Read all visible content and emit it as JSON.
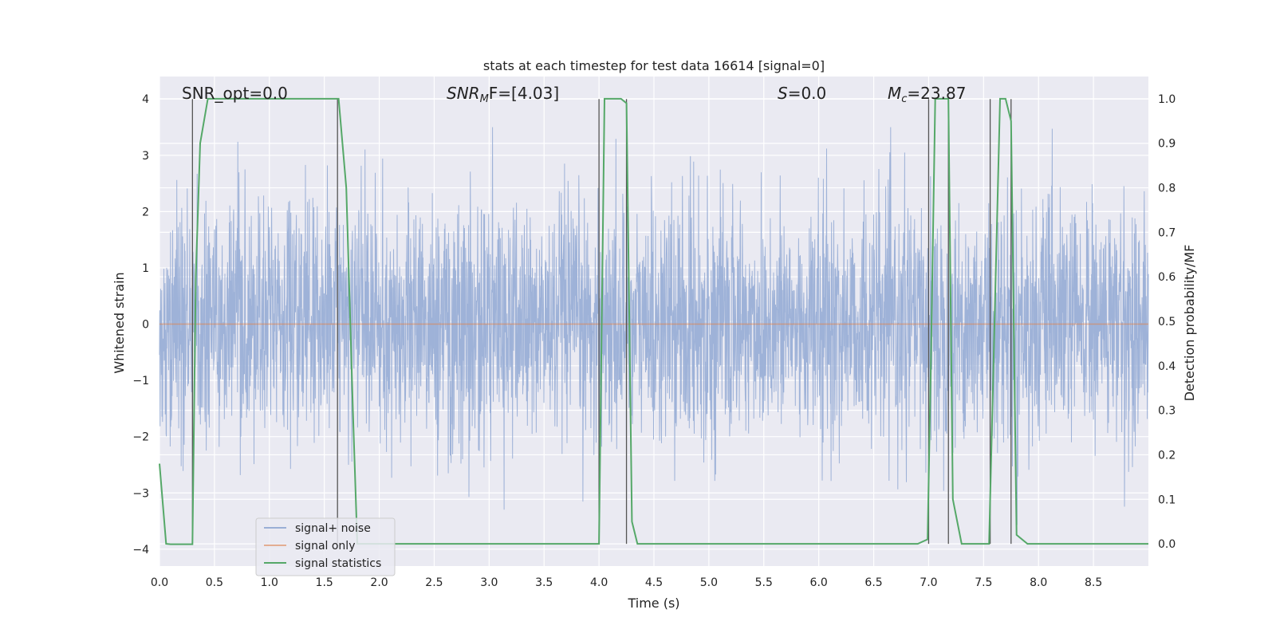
{
  "chart_data": {
    "type": "line",
    "title": "stats at each timestep for test data 16614 [signal=0]",
    "xlabel": "Time (s)",
    "ylabel_left": "Whitened strain",
    "ylabel_right": "Detection probability/MF",
    "xlim": [
      0.0,
      9.0
    ],
    "ylim_left": [
      -4.3,
      4.4
    ],
    "ylim_right": [
      -0.05,
      1.05
    ],
    "x_ticks": [
      "0.0",
      "0.5",
      "1.0",
      "1.5",
      "2.0",
      "2.5",
      "3.0",
      "3.5",
      "4.0",
      "4.5",
      "5.0",
      "5.5",
      "6.0",
      "6.5",
      "7.0",
      "7.5",
      "8.0",
      "8.5"
    ],
    "left_ticks": [
      "-4",
      "-3",
      "-2",
      "-1",
      "0",
      "1",
      "2",
      "3",
      "4"
    ],
    "right_ticks": [
      "0.0",
      "0.1",
      "0.2",
      "0.3",
      "0.4",
      "0.5",
      "0.6",
      "0.7",
      "0.8",
      "0.9",
      "1.0"
    ],
    "grid": true,
    "annotations": {
      "snr_opt": "SNR_opt=0.0",
      "snr_mf_base": "SNR",
      "snr_mf_sub": "M",
      "snr_mf_rest": "F=[4.03]",
      "s_var": "S",
      "s_rest": "=0.0",
      "mc_var": "M",
      "mc_sub": "c",
      "mc_rest": "=23.87"
    },
    "legend": {
      "location": "lower-left",
      "entries": [
        "signal+ noise",
        "signal only",
        "signal statistics"
      ]
    },
    "colors": {
      "noise": "#9aafd6",
      "signal": "#dd8452",
      "stats": "#55a868",
      "vlines": "#555555",
      "background": "#eaeaf2"
    },
    "series": [
      {
        "name": "signal+ noise",
        "axis": "left",
        "description_values": "gaussian-like noise, roughly within -4 to 3.5"
      },
      {
        "name": "signal only",
        "axis": "left",
        "x": [
          0.0,
          9.0
        ],
        "y": [
          0.0,
          0.0
        ]
      },
      {
        "name": "signal statistics",
        "axis": "right",
        "x": [
          0.0,
          0.06,
          0.1,
          0.2,
          0.3,
          0.33,
          0.37,
          0.44,
          0.5,
          1.0,
          1.5,
          1.63,
          1.7,
          1.76,
          1.8,
          2.0,
          3.0,
          3.99,
          4.0,
          4.05,
          4.1,
          4.2,
          4.25,
          4.3,
          4.35,
          4.5,
          5.0,
          6.0,
          6.9,
          6.99,
          7.02,
          7.06,
          7.15,
          7.18,
          7.22,
          7.3,
          7.4,
          7.5,
          7.55,
          7.65,
          7.7,
          7.75,
          7.8,
          7.9,
          8.5,
          8.85,
          9.0
        ],
        "y": [
          0.18,
          0.0,
          -0.001,
          -0.001,
          -0.001,
          0.6,
          0.9,
          1.0,
          1.0,
          1.0,
          1.0,
          1.0,
          0.8,
          0.3,
          0.0,
          0.0,
          0.0,
          0.0,
          0.0,
          1.0,
          1.0,
          1.0,
          0.99,
          0.05,
          0.0,
          0.0,
          0.0,
          0.0,
          0.0,
          0.01,
          0.4,
          1.0,
          1.0,
          1.0,
          0.1,
          0.0,
          0.0,
          0.0,
          0.0,
          1.0,
          1.0,
          0.95,
          0.02,
          0.0,
          0.0,
          0.0,
          0.0
        ]
      }
    ],
    "vertical_lines_x": [
      0.3,
      1.62,
      4.0,
      4.25,
      7.0,
      7.18,
      7.56,
      7.75
    ]
  }
}
